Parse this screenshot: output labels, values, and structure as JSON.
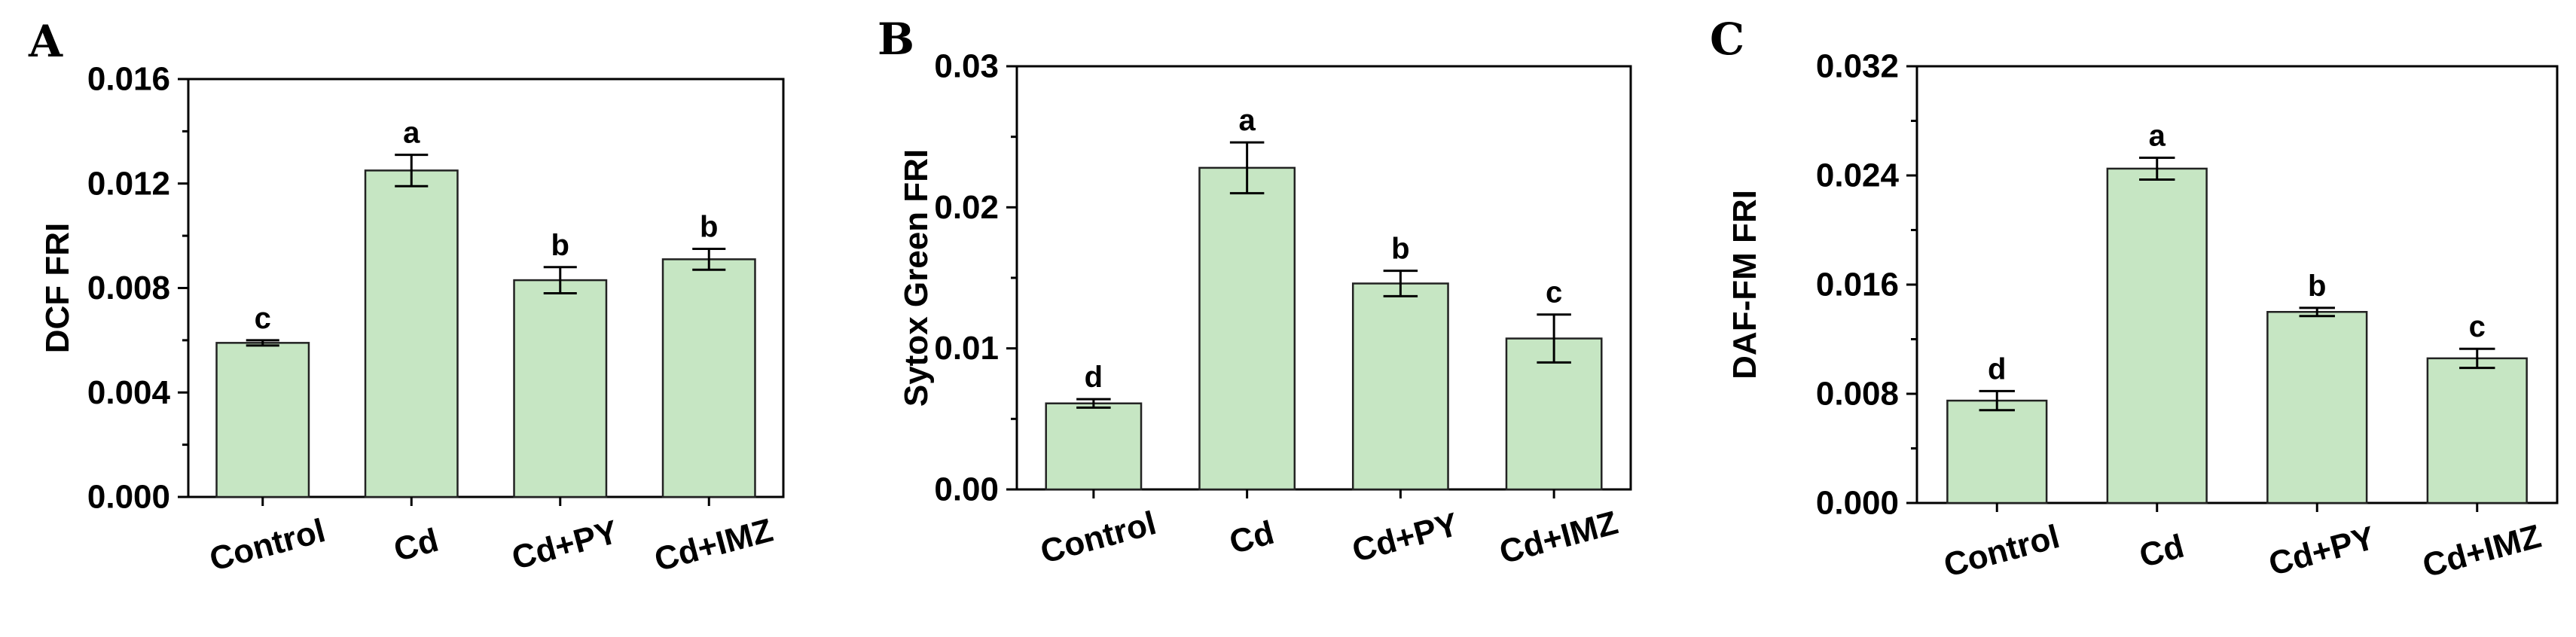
{
  "colors": {
    "bar_fill": "#c6e6c3",
    "bar_edge": "#222222",
    "axis": "#000000"
  },
  "chart_data": [
    {
      "type": "bar",
      "panel": "A",
      "ylabel": "DCF FRI",
      "ylim": [
        0,
        0.016
      ],
      "yticks": [
        "0.000",
        "0.004",
        "0.008",
        "0.012",
        "0.016"
      ],
      "yminor": true,
      "categories": [
        "Control",
        "Cd",
        "Cd+PY",
        "Cd+IMZ"
      ],
      "values": [
        0.0059,
        0.0125,
        0.0083,
        0.0091
      ],
      "errors": [
        0.0001,
        0.0006,
        0.0005,
        0.0004
      ],
      "significance": [
        "c",
        "a",
        "b",
        "b"
      ]
    },
    {
      "type": "bar",
      "panel": "B",
      "ylabel": "Sytox Green FRI",
      "ylim": [
        0,
        0.03
      ],
      "yticks": [
        "0.00",
        "0.01",
        "0.02",
        "0.03"
      ],
      "yminor": true,
      "categories": [
        "Control",
        "Cd",
        "Cd+PY",
        "Cd+IMZ"
      ],
      "values": [
        0.0061,
        0.0228,
        0.0146,
        0.0107
      ],
      "errors": [
        0.0003,
        0.0018,
        0.0009,
        0.0017
      ],
      "significance": [
        "d",
        "a",
        "b",
        "c"
      ]
    },
    {
      "type": "bar",
      "panel": "C",
      "ylabel": "DAF-FM FRI",
      "ylim": [
        0,
        0.032
      ],
      "yticks": [
        "0.000",
        "0.008",
        "0.016",
        "0.024",
        "0.032"
      ],
      "yminor": true,
      "categories": [
        "Control",
        "Cd",
        "Cd+PY",
        "Cd+IMZ"
      ],
      "values": [
        0.0075,
        0.0245,
        0.014,
        0.0106
      ],
      "errors": [
        0.0007,
        0.0008,
        0.0003,
        0.0007
      ],
      "significance": [
        "d",
        "a",
        "b",
        "c"
      ]
    }
  ]
}
